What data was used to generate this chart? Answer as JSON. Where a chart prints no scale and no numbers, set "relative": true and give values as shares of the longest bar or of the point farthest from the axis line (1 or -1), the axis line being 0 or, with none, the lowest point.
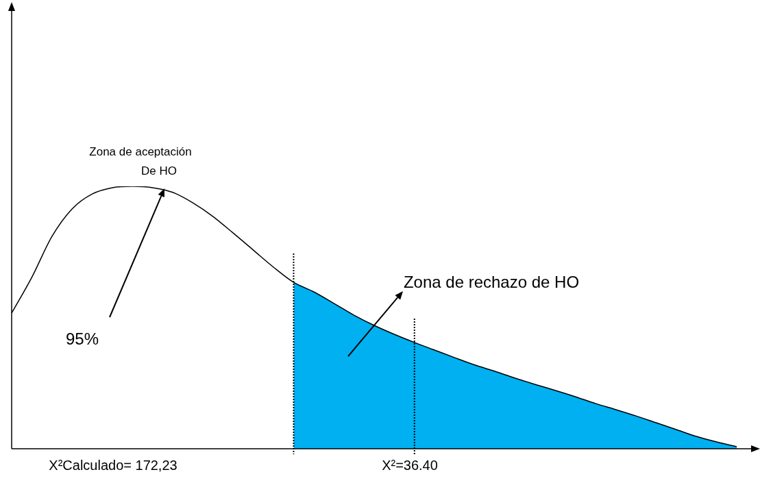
{
  "chart_data": {
    "type": "line",
    "relative": true,
    "legend": false,
    "marker": "none",
    "categories": [
      null,
      null,
      null,
      null,
      null,
      null,
      null,
      null,
      null,
      null,
      null,
      null,
      null,
      null,
      null,
      null,
      null,
      null,
      null,
      null,
      null,
      null,
      null,
      null,
      null,
      null,
      null,
      null,
      null,
      null,
      null,
      null,
      null,
      null,
      null,
      null,
      null
    ],
    "series": [
      {
        "type": "area",
        "color": "#00b0f0",
        "values": [
          null,
          null,
          null,
          null,
          null,
          null,
          null,
          null,
          null,
          null,
          null,
          null,
          null,
          null,
          0.634,
          0.598,
          0.554,
          0.509,
          0.47,
          0.436,
          0.405,
          0.376,
          0.347,
          0.319,
          0.295,
          0.269,
          0.245,
          0.222,
          0.198,
          0.172,
          0.149,
          0.125,
          0.099,
          0.073,
          0.047,
          0.026,
          0.008
        ]
      },
      {
        "type": "line",
        "color": "#000000",
        "values": [
          0.517,
          0.653,
          0.809,
          0.914,
          0.971,
          0.995,
          1,
          0.995,
          0.977,
          0.937,
          0.885,
          0.822,
          0.757,
          0.692,
          0.634,
          0.598,
          0.554,
          0.509,
          0.47,
          0.436,
          0.405,
          0.376,
          0.347,
          0.319,
          0.295,
          0.269,
          0.245,
          0.222,
          0.198,
          0.172,
          0.149,
          0.125,
          0.099,
          0.073,
          0.047,
          0.026,
          0.008
        ]
      }
    ],
    "annotations": [
      "Zona de aceptación",
      "De HO",
      "Zona de rechazo de HO",
      "95%",
      "X²Calculado= 172,23",
      "X²=36.40"
    ]
  }
}
